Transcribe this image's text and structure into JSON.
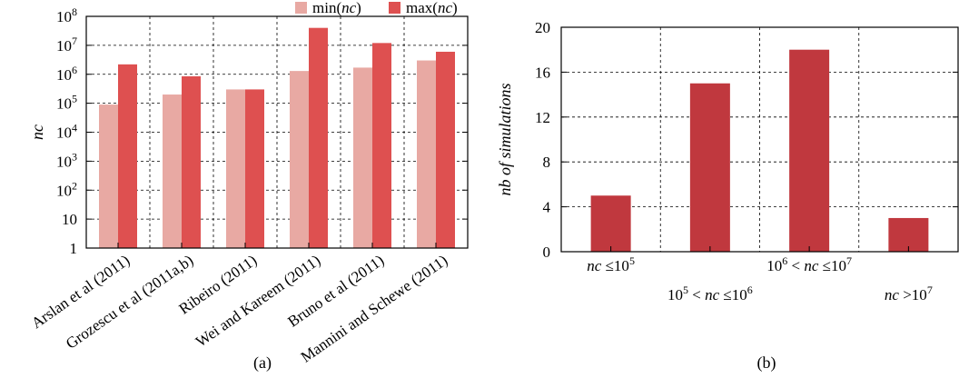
{
  "chart_data": [
    {
      "panel_label": "(a)",
      "type": "bar",
      "ylabel": "nc",
      "yscale": "log",
      "ylim": [
        1,
        100000000
      ],
      "yticks": [
        {
          "value": 1,
          "base": "1",
          "exp": ""
        },
        {
          "value": 10,
          "base": "10",
          "exp": ""
        },
        {
          "value": 100,
          "base": "10",
          "exp": "2"
        },
        {
          "value": 1000,
          "base": "10",
          "exp": "3"
        },
        {
          "value": 10000,
          "base": "10",
          "exp": "4"
        },
        {
          "value": 100000,
          "base": "10",
          "exp": "5"
        },
        {
          "value": 1000000,
          "base": "10",
          "exp": "6"
        },
        {
          "value": 10000000,
          "base": "10",
          "exp": "7"
        },
        {
          "value": 100000000,
          "base": "10",
          "exp": "8"
        }
      ],
      "categories": [
        "Arslan et al (2011)",
        "Grozescu et al (2011a,b)",
        "Ribeiro (2011)",
        "Wei and Kareem (2011)",
        "Bruno et al (2011)",
        "Mannini and Schewe (2011)"
      ],
      "grid": true,
      "legend_position": "top-right",
      "series": [
        {
          "name": "min(nc)",
          "name_prefix": "min(",
          "name_var": "nc",
          "name_suffix": ")",
          "color": "#e8a9a3",
          "values": [
            90000,
            200000,
            300000,
            1300000,
            1700000,
            3000000
          ]
        },
        {
          "name": "max(nc)",
          "name_prefix": "max(",
          "name_var": "nc",
          "name_suffix": ")",
          "color": "#de5050",
          "values": [
            2200000,
            850000,
            300000,
            40000000,
            12000000,
            6000000
          ]
        }
      ]
    },
    {
      "panel_label": "(b)",
      "type": "bar",
      "ylabel": "nb of simulations",
      "ylim": [
        0,
        20
      ],
      "yticks": [
        0,
        4,
        8,
        12,
        16,
        20
      ],
      "grid": true,
      "color": "#c0383e",
      "categories": [
        {
          "parts": [
            [
              "i",
              "nc"
            ],
            [
              "r",
              " ≤10"
            ],
            [
              "s",
              "5"
            ]
          ]
        },
        {
          "parts": [
            [
              "r",
              "10"
            ],
            [
              "s",
              "5"
            ],
            [
              "r",
              " < "
            ],
            [
              "i",
              "nc"
            ],
            [
              "r",
              " ≤10"
            ],
            [
              "s",
              "6"
            ]
          ]
        },
        {
          "parts": [
            [
              "r",
              "10"
            ],
            [
              "s",
              "6"
            ],
            [
              "r",
              " < "
            ],
            [
              "i",
              "nc"
            ],
            [
              "r",
              " ≤10"
            ],
            [
              "s",
              "7"
            ]
          ]
        },
        {
          "parts": [
            [
              "i",
              "nc"
            ],
            [
              "r",
              " >10"
            ],
            [
              "s",
              "7"
            ]
          ]
        }
      ],
      "values": [
        5,
        15,
        18,
        3
      ]
    }
  ]
}
